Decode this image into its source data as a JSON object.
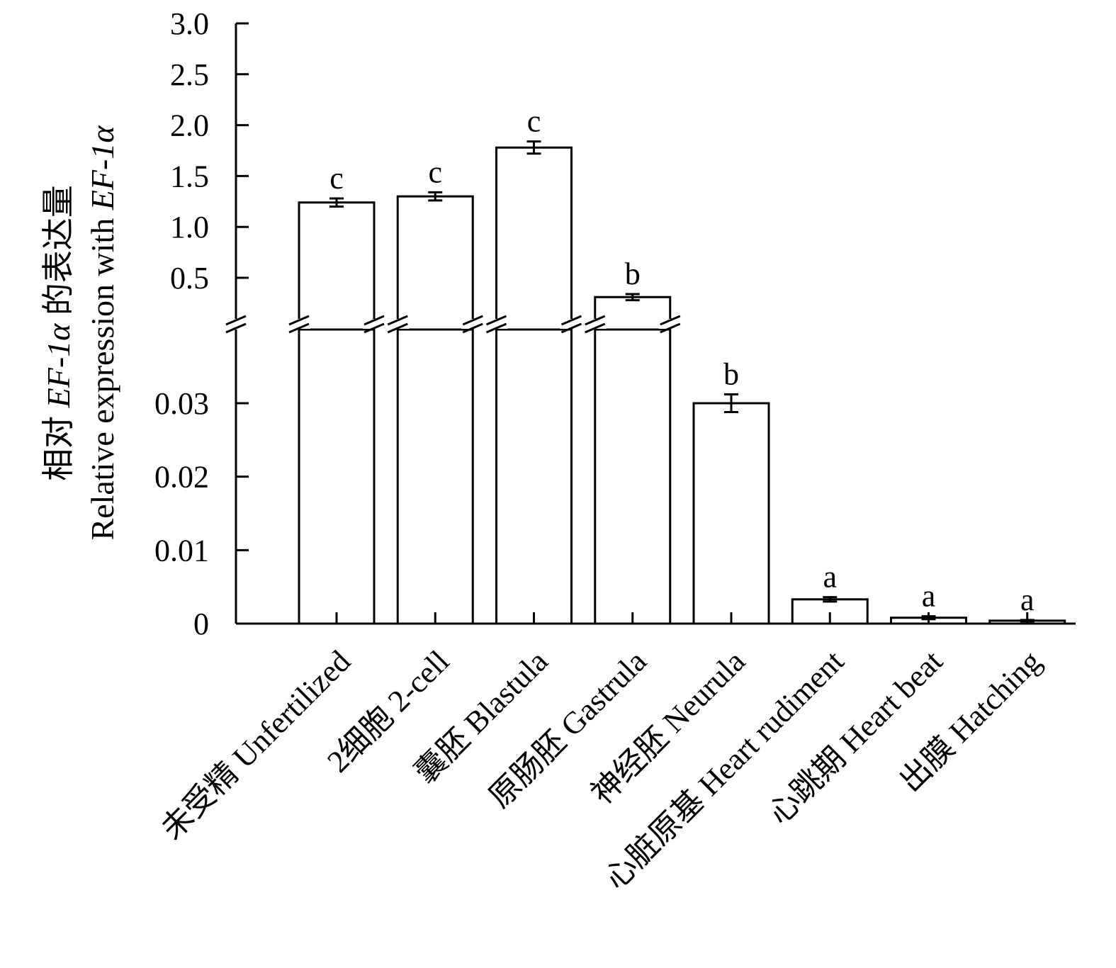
{
  "chart_data": {
    "type": "bar",
    "title": "",
    "xlabel": "",
    "ylabel_line1": [
      "相对 ",
      "EF-1α",
      " 的表达量"
    ],
    "ylabel_line2": [
      "Relative expression with ",
      "EF-1α"
    ],
    "categories": [
      "未受精 Unfertilized",
      "2细胞 2-cell",
      "囊胚 Blastula",
      "原肠胚 Gastrula",
      "神经胚 Neurula",
      "心脏原基 Heart rudiment",
      "心跳期 Heart beat",
      "出膜 Hatching"
    ],
    "values": [
      1.24,
      1.3,
      1.78,
      0.31,
      0.03,
      0.0033,
      0.0008,
      0.0004
    ],
    "errors": [
      0.04,
      0.04,
      0.06,
      0.03,
      0.0012,
      0.0003,
      0.0002,
      0.0001
    ],
    "significance": [
      "c",
      "c",
      "c",
      "b",
      "b",
      "a",
      "a",
      "a"
    ],
    "y_axis": {
      "broken": true,
      "lower_range": [
        0,
        0.04
      ],
      "upper_range": [
        0.0,
        3.0
      ],
      "lower_ticks": [
        0,
        0.01,
        0.02,
        0.03
      ],
      "lower_tick_labels": [
        "0",
        "0.01",
        "0.02",
        "0.03"
      ],
      "upper_ticks": [
        0.5,
        1.0,
        1.5,
        2.0,
        2.5,
        3.0
      ],
      "upper_tick_labels": [
        "0.5",
        "1.0",
        "1.5",
        "2.0",
        "2.5",
        "3.0"
      ]
    },
    "grid": false,
    "legend": "none",
    "bar_fill": "#ffffff",
    "bar_stroke": "#000000"
  }
}
